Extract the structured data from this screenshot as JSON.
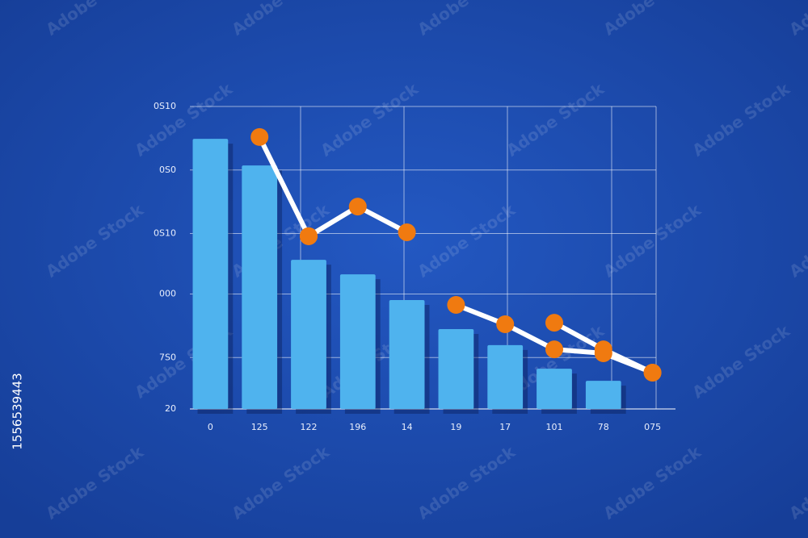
{
  "chart_data": {
    "type": "bar",
    "categories": [
      "0",
      "125",
      "122",
      "196",
      "14",
      "19",
      "17",
      "101",
      "78",
      "075"
    ],
    "values": [
      109.3,
      100.5,
      69.3,
      64.5,
      56,
      46.4,
      41.1,
      33.3,
      29.3,
      null
    ],
    "color": "#4fb3ee",
    "series": [
      {
        "color": "#f07a10",
        "values": [
          null,
          109.9,
          77.1,
          86.9,
          78.4,
          null,
          null,
          48.5,
          39.7,
          32
        ]
      },
      {
        "color": "#f07a10",
        "values": [
          null,
          null,
          77.1,
          null,
          null,
          54.4,
          48,
          39.7,
          38.4,
          32
        ]
      }
    ],
    "ylim": [
      20,
      120
    ],
    "yticks": [
      {
        "value": 120,
        "label": "0S10"
      },
      {
        "value": 99,
        "label": "0S0"
      },
      {
        "value": 78,
        "label": "0S10"
      },
      {
        "value": 58,
        "label": "000"
      },
      {
        "value": 37,
        "label": "7S0"
      },
      20
    ],
    "grid": true
  },
  "watermark": "Adobe Stock",
  "image_id": "1556539443"
}
